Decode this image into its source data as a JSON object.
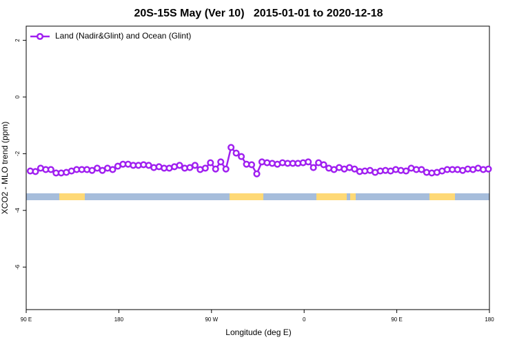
{
  "chart_data": {
    "type": "line",
    "title": "20S-15S May (Ver 10)   2015-01-01 to 2020-12-18",
    "xlabel": "Longitude (deg E)",
    "ylabel": "XCO2 - MLO trend (ppm)",
    "xlim": [
      90,
      540
    ],
    "ylim": [
      -7.5,
      2.5
    ],
    "xticks": [
      {
        "value": 90,
        "label": "90 E"
      },
      180,
      {
        "value": 270,
        "label": "90 W"
      },
      {
        "value": 360,
        "label": "0"
      },
      {
        "value": 450,
        "label": "90 E"
      },
      {
        "value": 540,
        "label": "180"
      }
    ],
    "yticks": [
      2,
      0,
      -2,
      -4,
      -6
    ],
    "legend": "top-left",
    "x": [
      94,
      99,
      104,
      109,
      114,
      119,
      124,
      129,
      134,
      139,
      144,
      149,
      154,
      159,
      164,
      169,
      174,
      179,
      184,
      189,
      194,
      199,
      204,
      209,
      214,
      219,
      224,
      229,
      234,
      239,
      244,
      249,
      254,
      259,
      264,
      269,
      274,
      279,
      284,
      289,
      294,
      299,
      304,
      309,
      314,
      319,
      324,
      329,
      334,
      339,
      344,
      349,
      354,
      359,
      364,
      369,
      374,
      379,
      384,
      389,
      394,
      399,
      404,
      409,
      414,
      419,
      424,
      429,
      434,
      439,
      444,
      449,
      454,
      459,
      464,
      469,
      474,
      479,
      484,
      489,
      494,
      499,
      504,
      509,
      514,
      519,
      524,
      529,
      534,
      539
    ],
    "series": [
      {
        "name": "Land (Nadir&Glint) and Ocean (Glint)",
        "color": "#a020f0",
        "values": [
          -2.61,
          -2.63,
          -2.51,
          -2.56,
          -2.56,
          -2.68,
          -2.68,
          -2.66,
          -2.61,
          -2.56,
          -2.56,
          -2.56,
          -2.59,
          -2.51,
          -2.59,
          -2.51,
          -2.56,
          -2.44,
          -2.37,
          -2.37,
          -2.41,
          -2.41,
          -2.39,
          -2.41,
          -2.49,
          -2.46,
          -2.51,
          -2.51,
          -2.46,
          -2.41,
          -2.51,
          -2.49,
          -2.41,
          -2.56,
          -2.51,
          -2.32,
          -2.54,
          -2.29,
          -2.54,
          -1.78,
          -1.98,
          -2.1,
          -2.37,
          -2.39,
          -2.71,
          -2.29,
          -2.32,
          -2.34,
          -2.37,
          -2.32,
          -2.34,
          -2.34,
          -2.34,
          -2.32,
          -2.29,
          -2.49,
          -2.32,
          -2.39,
          -2.51,
          -2.56,
          -2.49,
          -2.54,
          -2.49,
          -2.54,
          -2.63,
          -2.61,
          -2.59,
          -2.66,
          -2.61,
          -2.59,
          -2.61,
          -2.56,
          -2.59,
          -2.61,
          -2.51,
          -2.56,
          -2.56,
          -2.66,
          -2.68,
          -2.66,
          -2.61,
          -2.56,
          -2.56,
          -2.56,
          -2.59,
          -2.54,
          -2.56,
          -2.51,
          -2.56,
          -2.54
        ]
      }
    ]
  }
}
